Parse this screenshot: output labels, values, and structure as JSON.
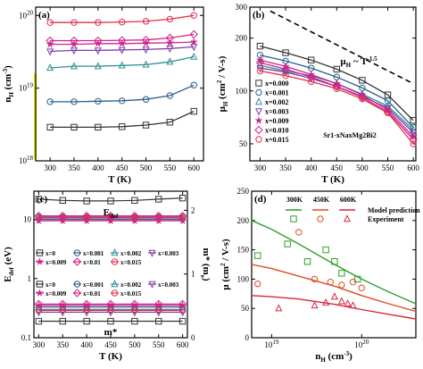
{
  "chart_data": [
    {
      "id": "a",
      "type": "line",
      "panel_label": "(a)",
      "xlabel": "T (K)",
      "ylabel": "n_H (cm^-3)",
      "xlim": [
        270,
        620
      ],
      "ylim": [
        1e+18,
        1.3e+20
      ],
      "yscale": "log",
      "xticks": [
        300,
        350,
        400,
        450,
        500,
        550,
        600
      ],
      "yticks": [
        1e+18,
        1e+19,
        1e+20
      ],
      "ytick_labels": [
        "10^18",
        "10^19",
        "10^20"
      ],
      "x": [
        300,
        350,
        400,
        450,
        500,
        550,
        600
      ],
      "series": [
        {
          "color": "#333333",
          "marker": "square",
          "values": [
            2.9e+18,
            2.9e+18,
            2.9e+18,
            2.95e+18,
            3.1e+18,
            3.4e+18,
            4.8e+18
          ]
        },
        {
          "color": "#2a5f8f",
          "marker": "circle",
          "values": [
            6.5e+18,
            6.5e+18,
            6.6e+18,
            6.7e+18,
            7e+18,
            7.9e+18,
            1.1e+19
          ]
        },
        {
          "color": "#2d8f8f",
          "marker": "triangle",
          "values": [
            1.9e+19,
            2e+19,
            2e+19,
            2.05e+19,
            2.1e+19,
            2.3e+19,
            2.7e+19
          ]
        },
        {
          "color": "#7a3aa8",
          "marker": "triangle-down",
          "values": [
            3.2e+19,
            3.3e+19,
            3.3e+19,
            3.35e+19,
            3.4e+19,
            3.5e+19,
            3.7e+19
          ]
        },
        {
          "color": "#c8278f",
          "marker": "star",
          "values": [
            4e+19,
            4e+19,
            4.1e+19,
            4.1e+19,
            4.15e+19,
            4.2e+19,
            4.3e+19
          ]
        },
        {
          "color": "#d6208a",
          "marker": "diamond",
          "values": [
            4.5e+19,
            4.5e+19,
            4.5e+19,
            4.55e+19,
            4.6e+19,
            4.9e+19,
            5.5e+19
          ]
        },
        {
          "color": "#e0304a",
          "marker": "circle",
          "values": [
            8e+19,
            8e+19,
            8e+19,
            8.1e+19,
            8.3e+19,
            8.9e+19,
            1e+20
          ]
        }
      ]
    },
    {
      "id": "b",
      "type": "line",
      "panel_label": "(b)",
      "xlabel": "T (K)",
      "ylabel": "μ_H (cm^2 / V-s)",
      "xlim": [
        280,
        605
      ],
      "ylim": [
        40,
        300
      ],
      "yscale": "log",
      "xticks": [
        300,
        350,
        400,
        450,
        500,
        550,
        600
      ],
      "yticks": [
        50,
        100,
        200,
        300
      ],
      "annotation": "μ_H ~ T^-1.5",
      "compound": "Sr1-xNaxMg2Bi2",
      "legend_position": "left",
      "x": [
        300,
        350,
        400,
        450,
        500,
        550,
        600
      ],
      "series": [
        {
          "name": "x=0.000",
          "color": "#333333",
          "marker": "square",
          "values": [
            180,
            165,
            150,
            133,
            115,
            95,
            68
          ]
        },
        {
          "name": "x=0.001",
          "color": "#2a5f8f",
          "marker": "circle",
          "values": [
            160,
            148,
            135,
            120,
            104,
            88,
            62
          ]
        },
        {
          "name": "x=0.002",
          "color": "#2d8f8f",
          "marker": "triangle",
          "values": [
            140,
            130,
            122,
            110,
            96,
            82,
            60
          ]
        },
        {
          "name": "x=0.003",
          "color": "#7a3aa8",
          "marker": "triangle-down",
          "values": [
            135,
            128,
            118,
            106,
            93,
            80,
            58
          ]
        },
        {
          "name": "x=0.009",
          "color": "#c8278f",
          "marker": "star",
          "values": [
            150,
            138,
            124,
            110,
            95,
            78,
            55
          ]
        },
        {
          "name": "x=0.010",
          "color": "#d6208a",
          "marker": "diamond",
          "values": [
            145,
            133,
            120,
            106,
            92,
            76,
            53
          ]
        },
        {
          "name": "x=0.015",
          "color": "#e0304a",
          "marker": "circle",
          "values": [
            130,
            122,
            113,
            103,
            90,
            75,
            50
          ]
        }
      ],
      "reference_line": {
        "x": [
          320,
          600
        ],
        "values": [
          285,
          110
        ]
      }
    },
    {
      "id": "c",
      "type": "line",
      "panel_label": "(c)",
      "xlabel": "T (K)",
      "ylabel": "E_def (eV)",
      "ylabel_right": "m* (m_e)",
      "xlim": [
        290,
        610
      ],
      "ylim": [
        0.1,
        30
      ],
      "yscale": "log",
      "y2lim": [
        0,
        2.3
      ],
      "xticks": [
        300,
        350,
        400,
        450,
        500,
        550,
        600
      ],
      "yticks": [
        0.1,
        1,
        10
      ],
      "y2ticks": [
        0,
        1,
        2
      ],
      "label_edef": "E_def",
      "label_mstar": "m*",
      "legend_top": [
        "x=0",
        "x=0.001",
        "x=0.002",
        "x=0.003",
        "x=0.009",
        "x=0.01",
        "x=0.015"
      ],
      "legend_bottom": [
        "x=0",
        "x=0.001",
        "x=0.002",
        "x=0.003",
        "x=0.009",
        "x=0.01",
        "x=0.015"
      ],
      "x": [
        300,
        350,
        400,
        450,
        500,
        550,
        600
      ],
      "edef_series": [
        {
          "color": "#333333",
          "values": [
            22,
            21,
            20.5,
            20.5,
            21,
            22,
            23
          ]
        },
        {
          "color": "#2a5f8f",
          "values": [
            11,
            11,
            11,
            11,
            11,
            11,
            11
          ]
        },
        {
          "color": "#2d8f8f",
          "values": [
            10.5,
            10.5,
            10.5,
            10.5,
            10.5,
            10.5,
            10.5
          ]
        },
        {
          "color": "#7a3aa8",
          "values": [
            10,
            10,
            10,
            10,
            10,
            10,
            10
          ]
        },
        {
          "color": "#c8278f",
          "values": [
            9.5,
            9.5,
            9.5,
            9.5,
            9.5,
            9.5,
            9.5
          ]
        },
        {
          "color": "#d6208a",
          "values": [
            11.5,
            11.5,
            11.5,
            11.5,
            11.5,
            11.5,
            11.5
          ]
        },
        {
          "color": "#e0304a",
          "values": [
            10.8,
            10.8,
            10.8,
            10.8,
            10.8,
            10.8,
            10.8
          ]
        }
      ],
      "mstar_series": [
        {
          "color": "#333333",
          "values": [
            0.19,
            0.19,
            0.19,
            0.19,
            0.19,
            0.19,
            0.19
          ]
        },
        {
          "color": "#2a5f8f",
          "values": [
            0.33,
            0.33,
            0.33,
            0.33,
            0.33,
            0.33,
            0.33
          ]
        },
        {
          "color": "#2d8f8f",
          "values": [
            0.3,
            0.3,
            0.3,
            0.3,
            0.3,
            0.3,
            0.3
          ]
        },
        {
          "color": "#7a3aa8",
          "values": [
            0.27,
            0.27,
            0.27,
            0.27,
            0.27,
            0.27,
            0.27
          ]
        },
        {
          "color": "#c8278f",
          "values": [
            0.35,
            0.35,
            0.35,
            0.35,
            0.35,
            0.35,
            0.35
          ]
        },
        {
          "color": "#d6208a",
          "values": [
            0.37,
            0.37,
            0.37,
            0.37,
            0.37,
            0.37,
            0.37
          ]
        },
        {
          "color": "#e0304a",
          "values": [
            0.29,
            0.29,
            0.29,
            0.29,
            0.29,
            0.29,
            0.29
          ]
        }
      ]
    },
    {
      "id": "d",
      "type": "scatter",
      "panel_label": "(d)",
      "xlabel": "n_H (cm^-3)",
      "ylabel": "μ (cm^2 / V-s)",
      "xlim": [
        6e+18,
        4e+20
      ],
      "ylim": [
        0,
        250
      ],
      "xscale": "log",
      "xticks": [
        1e+19,
        1e+20
      ],
      "xtick_labels": [
        "10^19",
        "10^20"
      ],
      "yticks": [
        0,
        50,
        100,
        150,
        200,
        250
      ],
      "temperature_labels": [
        "300K",
        "450K",
        "600K"
      ],
      "legend": [
        "Model prediction",
        "Experiment"
      ],
      "series": [
        {
          "name": "300K",
          "color": "#2ca02c",
          "model_x": [
            6e+18,
            1e+19,
            2e+19,
            5e+19,
            1e+20,
            2e+20,
            4e+20
          ],
          "model_y": [
            200,
            185,
            160,
            125,
            100,
            78,
            58
          ],
          "exp_x": [
            7e+18,
            1.5e+19,
            2.5e+19,
            4e+19,
            5e+19,
            6e+19,
            9e+19
          ],
          "exp_y": [
            140,
            160,
            130,
            150,
            130,
            110,
            100
          ]
        },
        {
          "name": "450K",
          "color": "#e04a1f",
          "model_x": [
            6e+18,
            1e+19,
            2e+19,
            5e+19,
            1e+20,
            2e+20,
            4e+20
          ],
          "model_y": [
            125,
            118,
            105,
            88,
            72,
            58,
            45
          ],
          "exp_x": [
            7e+18,
            2e+19,
            3e+19,
            4.5e+19,
            6e+19,
            8e+19,
            1e+20
          ],
          "exp_y": [
            92,
            180,
            100,
            95,
            90,
            95,
            85
          ]
        },
        {
          "name": "600K",
          "color": "#d62740",
          "model_x": [
            6e+18,
            1e+19,
            2e+19,
            5e+19,
            1e+20,
            2e+20,
            4e+20
          ],
          "model_y": [
            72,
            70,
            66,
            57,
            48,
            40,
            32
          ],
          "exp_x": [
            1.2e+19,
            3e+19,
            4e+19,
            5e+19,
            6e+19,
            7e+19,
            8e+19
          ],
          "exp_y": [
            50,
            55,
            60,
            70,
            62,
            58,
            55
          ]
        }
      ]
    }
  ]
}
